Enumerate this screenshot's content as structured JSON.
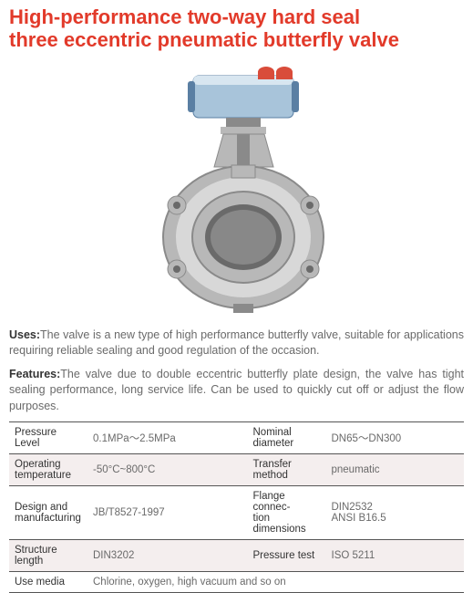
{
  "title_color": "#e23a2a",
  "title_line1": "High-performance two-way hard seal",
  "title_line2": "three eccentric pneumatic butterfly valve",
  "description": {
    "uses_label": "Uses:",
    "uses_text": "The valve is a new type of high performance butterfly valve, suitable for applications requiring reliable sealing and good regulation of the occasion.",
    "features_label": "Features:",
    "features_text": "The valve due to double eccentric butterfly plate design, the valve has tight sealing performance, long service life. Can be used to quickly cut off or adjust the flow purposes.",
    "text_color": "#6a6a6a"
  },
  "specs": {
    "rows": [
      {
        "h1": "Pressure Level",
        "v1": "0.1MPa～2.5MPa",
        "h2": "Nominal diameter",
        "v2": "DN65～DN300",
        "alt": false
      },
      {
        "h1": "Operating temperature",
        "v1": "-50°C~800°C",
        "h2": "Transfer method",
        "v2": "pneumatic",
        "alt": true
      },
      {
        "h1": "Design and manufacturing",
        "v1": "JB/T8527-1997",
        "h2": "Flange connec-\ntion dimensions",
        "v2": "DIN2532\nANSI B16.5",
        "alt": false
      },
      {
        "h1": "Structure length",
        "v1": "DIN3202",
        "h2": "Pressure test",
        "v2": "ISO 5211",
        "alt": true
      }
    ],
    "media_label": "Use media",
    "media_value": "Chlorine, oxygen, high vacuum and so on",
    "value_color": "#6a6a6a",
    "header_color": "#333333",
    "alt_bg": "#f4eeee"
  },
  "image": {
    "actuator_body": "#a8c4da",
    "actuator_accent": "#5a7fa3",
    "actuator_cap": "#d94c3a",
    "valve_body": "#b8b8b8",
    "valve_shadow": "#8a8a8a",
    "valve_light": "#d8d8d8"
  }
}
